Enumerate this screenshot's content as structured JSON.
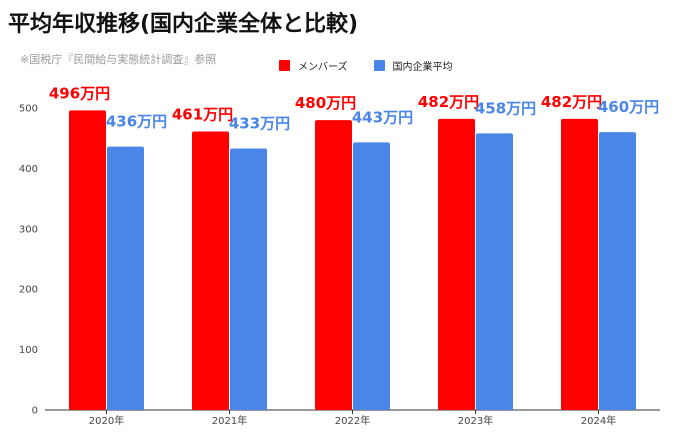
{
  "title": "平均年収推移(国内企業全体と比較)",
  "subtitle": "※国税庁『民間給与実態統計調査』参照",
  "colors": {
    "members": "#ff0000",
    "national": "#4a86e8",
    "members_label": "#ff0000",
    "national_label": "#4a86e8"
  },
  "chart_data": {
    "type": "bar",
    "categories": [
      "2020年",
      "2021年",
      "2022年",
      "2023年",
      "2024年"
    ],
    "series": [
      {
        "name": "メンバーズ",
        "values": [
          496,
          461,
          480,
          482,
          482
        ],
        "labels": [
          "496万円",
          "461万円",
          "480万円",
          "482万円",
          "482万円"
        ]
      },
      {
        "name": "国内企業平均",
        "values": [
          436,
          433,
          443,
          458,
          460
        ],
        "labels": [
          "436万円",
          "433万円",
          "443万円",
          "458万円",
          "460万円"
        ]
      }
    ],
    "ylim": [
      0,
      500
    ],
    "yticks": [
      0,
      100,
      200,
      300,
      400,
      500
    ],
    "legend_position": "top",
    "grid": false
  }
}
